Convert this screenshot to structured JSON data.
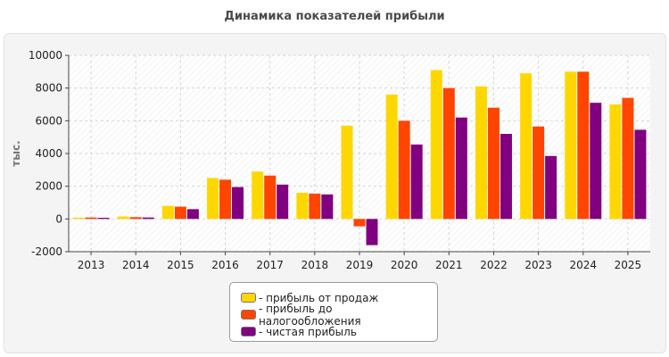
{
  "chart_data": {
    "type": "bar",
    "title": "Динамика показателей прибыли",
    "ylabel": "тыс.",
    "xlabel": "",
    "ylim": [
      -2000,
      10000
    ],
    "yticks": [
      -2000,
      0,
      2000,
      4000,
      6000,
      8000,
      10000
    ],
    "grid": true,
    "legend_position": "bottom",
    "categories": [
      "2013",
      "2014",
      "2015",
      "2016",
      "2017",
      "2018",
      "2019",
      "2020",
      "2021",
      "2022",
      "2023",
      "2024",
      "2025"
    ],
    "series": [
      {
        "name": "- прибыль от продаж",
        "color": "#FFD700",
        "values": [
          80,
          150,
          800,
          2500,
          2900,
          1600,
          5700,
          7600,
          9100,
          8100,
          8900,
          9000,
          7000
        ]
      },
      {
        "name": "- прибыль до налогообложения",
        "color": "#FF4500",
        "values": [
          90,
          110,
          750,
          2400,
          2650,
          1550,
          -450,
          6000,
          8000,
          6800,
          5650,
          9000,
          7400
        ]
      },
      {
        "name": "- чистая прибыль",
        "color": "#800080",
        "values": [
          70,
          90,
          600,
          1950,
          2100,
          1500,
          -1600,
          4550,
          6200,
          5200,
          3850,
          7100,
          5450
        ]
      }
    ]
  }
}
